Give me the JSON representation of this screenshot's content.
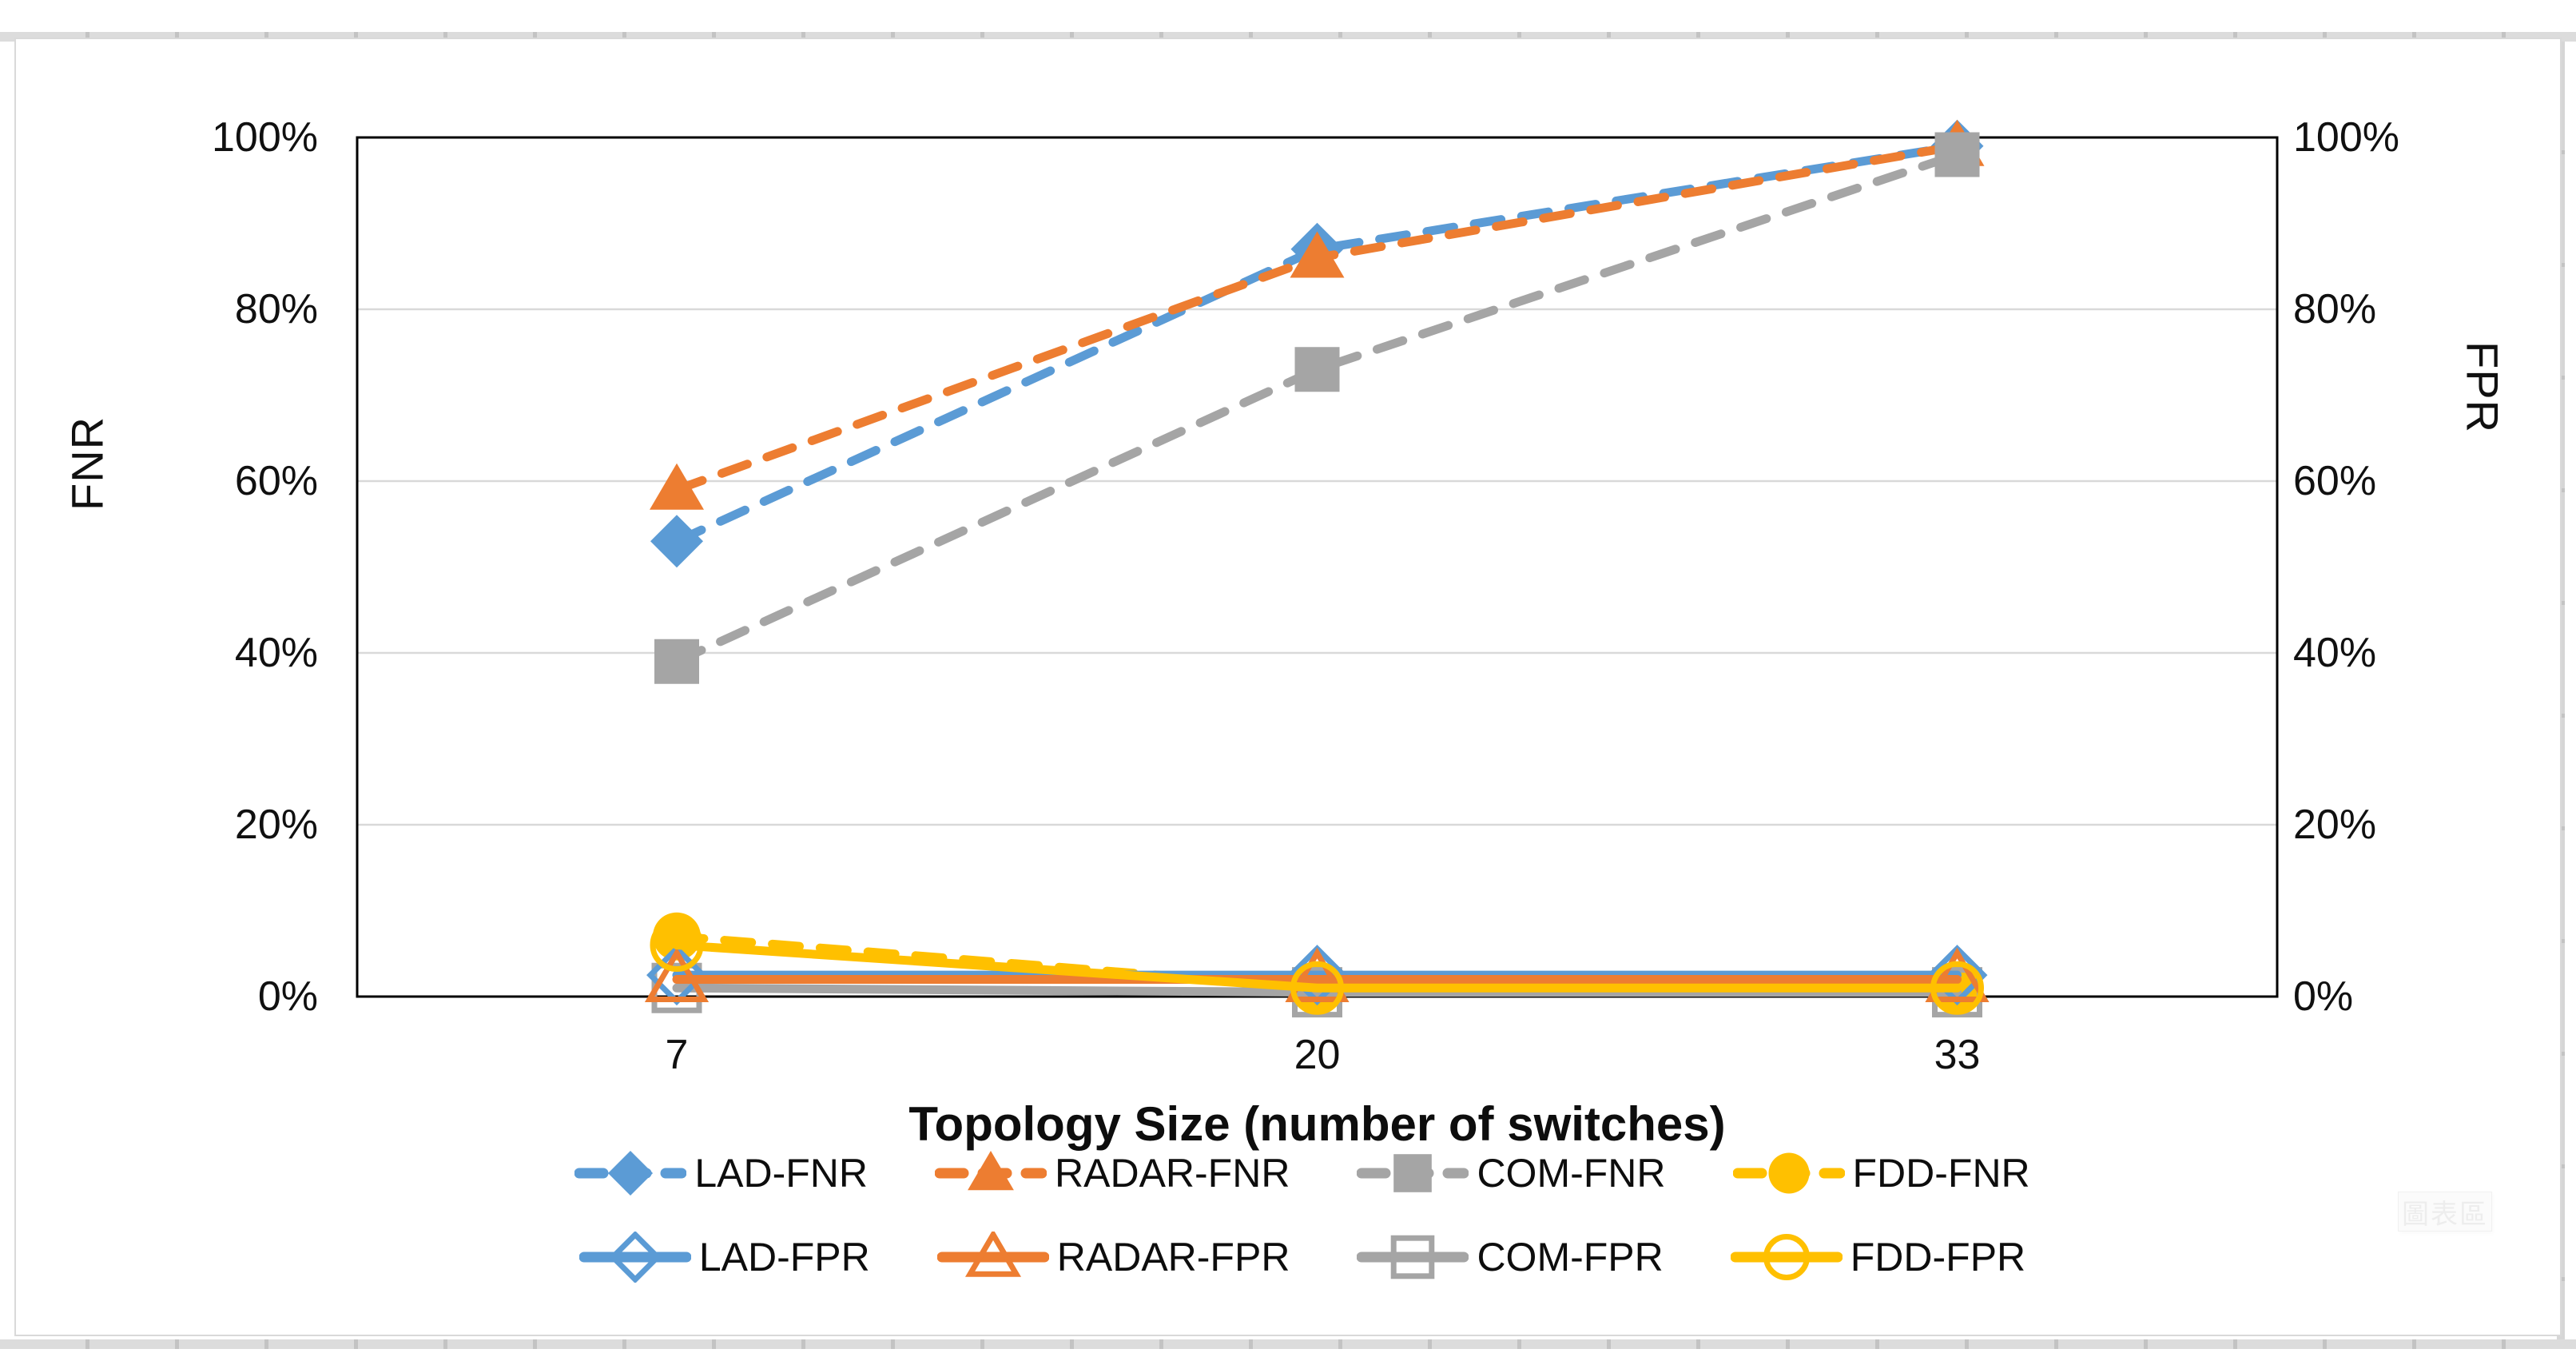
{
  "watermark_tooltip": "圖表區",
  "chart_data": {
    "type": "line",
    "xlabel": "Topology Size (number of switches)",
    "ylabel_left": "FNR",
    "ylabel_right": "FPR",
    "x_categories": [
      "7",
      "20",
      "33"
    ],
    "y_axis": {
      "ticks": [
        "0%",
        "20%",
        "40%",
        "60%",
        "80%",
        "100%"
      ],
      "tick_values": [
        0,
        20,
        40,
        60,
        80,
        100
      ],
      "min": 0,
      "max": 100,
      "grid": "horizontal-only",
      "duplicated_on_right": true
    },
    "series": [
      {
        "name": "LAD-FNR",
        "axis": "left",
        "color": "#5B9BD5",
        "line": "dashed",
        "marker": "diamond",
        "marker_fill": "filled",
        "values": [
          53,
          87,
          99
        ]
      },
      {
        "name": "RADAR-FNR",
        "axis": "left",
        "color": "#ED7D31",
        "line": "dashed",
        "marker": "triangle",
        "marker_fill": "filled",
        "values": [
          59,
          86,
          99
        ]
      },
      {
        "name": "COM-FNR",
        "axis": "left",
        "color": "#A5A5A5",
        "line": "dashed",
        "marker": "square",
        "marker_fill": "filled",
        "values": [
          39,
          73,
          98
        ]
      },
      {
        "name": "FDD-FNR",
        "axis": "left",
        "color": "#FFC000",
        "line": "dashed",
        "marker": "circle",
        "marker_fill": "filled",
        "values": [
          7,
          1,
          1
        ]
      },
      {
        "name": "LAD-FPR",
        "axis": "right",
        "color": "#5B9BD5",
        "line": "solid",
        "marker": "diamond",
        "marker_fill": "open",
        "values": [
          2.5,
          2.5,
          2.5
        ]
      },
      {
        "name": "RADAR-FPR",
        "axis": "right",
        "color": "#ED7D31",
        "line": "solid",
        "marker": "triangle",
        "marker_fill": "open",
        "values": [
          2,
          2,
          2
        ]
      },
      {
        "name": "COM-FPR",
        "axis": "right",
        "color": "#A5A5A5",
        "line": "solid",
        "marker": "square",
        "marker_fill": "open",
        "values": [
          1,
          0.5,
          0.5
        ]
      },
      {
        "name": "FDD-FPR",
        "axis": "right",
        "color": "#FFC000",
        "line": "solid",
        "marker": "circle",
        "marker_fill": "open",
        "values": [
          6,
          1,
          1
        ]
      }
    ],
    "legend": {
      "position": "bottom",
      "rows": [
        [
          "LAD-FNR",
          "RADAR-FNR",
          "COM-FNR",
          "FDD-FNR"
        ],
        [
          "LAD-FPR",
          "RADAR-FPR",
          "COM-FPR",
          "FDD-FPR"
        ]
      ]
    }
  }
}
